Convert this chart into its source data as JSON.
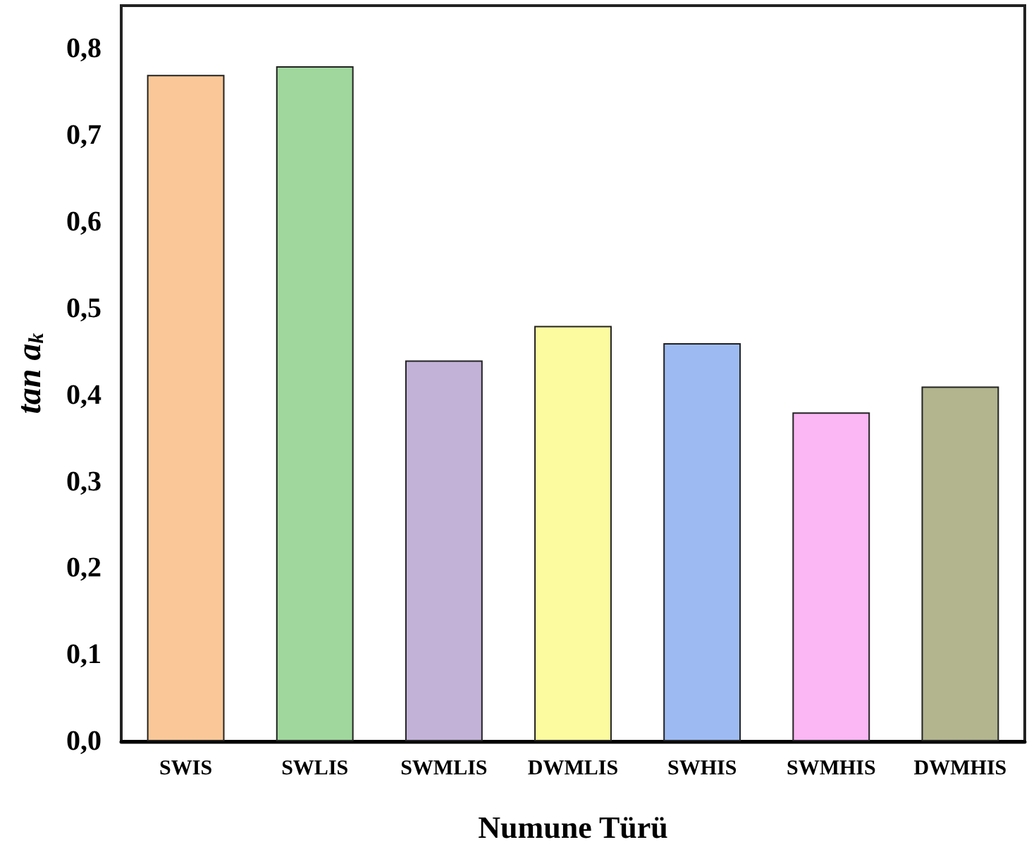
{
  "chart_data": {
    "type": "bar",
    "xlabel": "Numune Türü",
    "ylabel": "tan a$_{k}$",
    "categories": [
      "SWIS",
      "SWLIS",
      "SWMLIS",
      "DWMLIS",
      "SWHIS",
      "SWMHIS",
      "DWMHIS"
    ],
    "values": [
      0.77,
      0.78,
      0.44,
      0.48,
      0.46,
      0.38,
      0.41
    ],
    "colors": [
      "#fac898",
      "#9fd79c",
      "#c2b2d7",
      "#fdfb9f",
      "#9dbbf2",
      "#fbb6f4",
      "#b2b58e"
    ],
    "ylim": [
      0,
      0.85
    ],
    "yticks": [
      {
        "value": 0,
        "label": "0,0"
      },
      {
        "value": 0.1,
        "label": "0,1"
      },
      {
        "value": 0.2,
        "label": "0,2"
      },
      {
        "value": 0.3,
        "label": "0,3"
      },
      {
        "value": 0.4,
        "label": "0,4"
      },
      {
        "value": 0.5,
        "label": "0,5"
      },
      {
        "value": 0.6,
        "label": "0,6"
      },
      {
        "value": 0.7,
        "label": "0,7"
      },
      {
        "value": 0.8,
        "label": "0,8"
      }
    ],
    "grid": false
  }
}
